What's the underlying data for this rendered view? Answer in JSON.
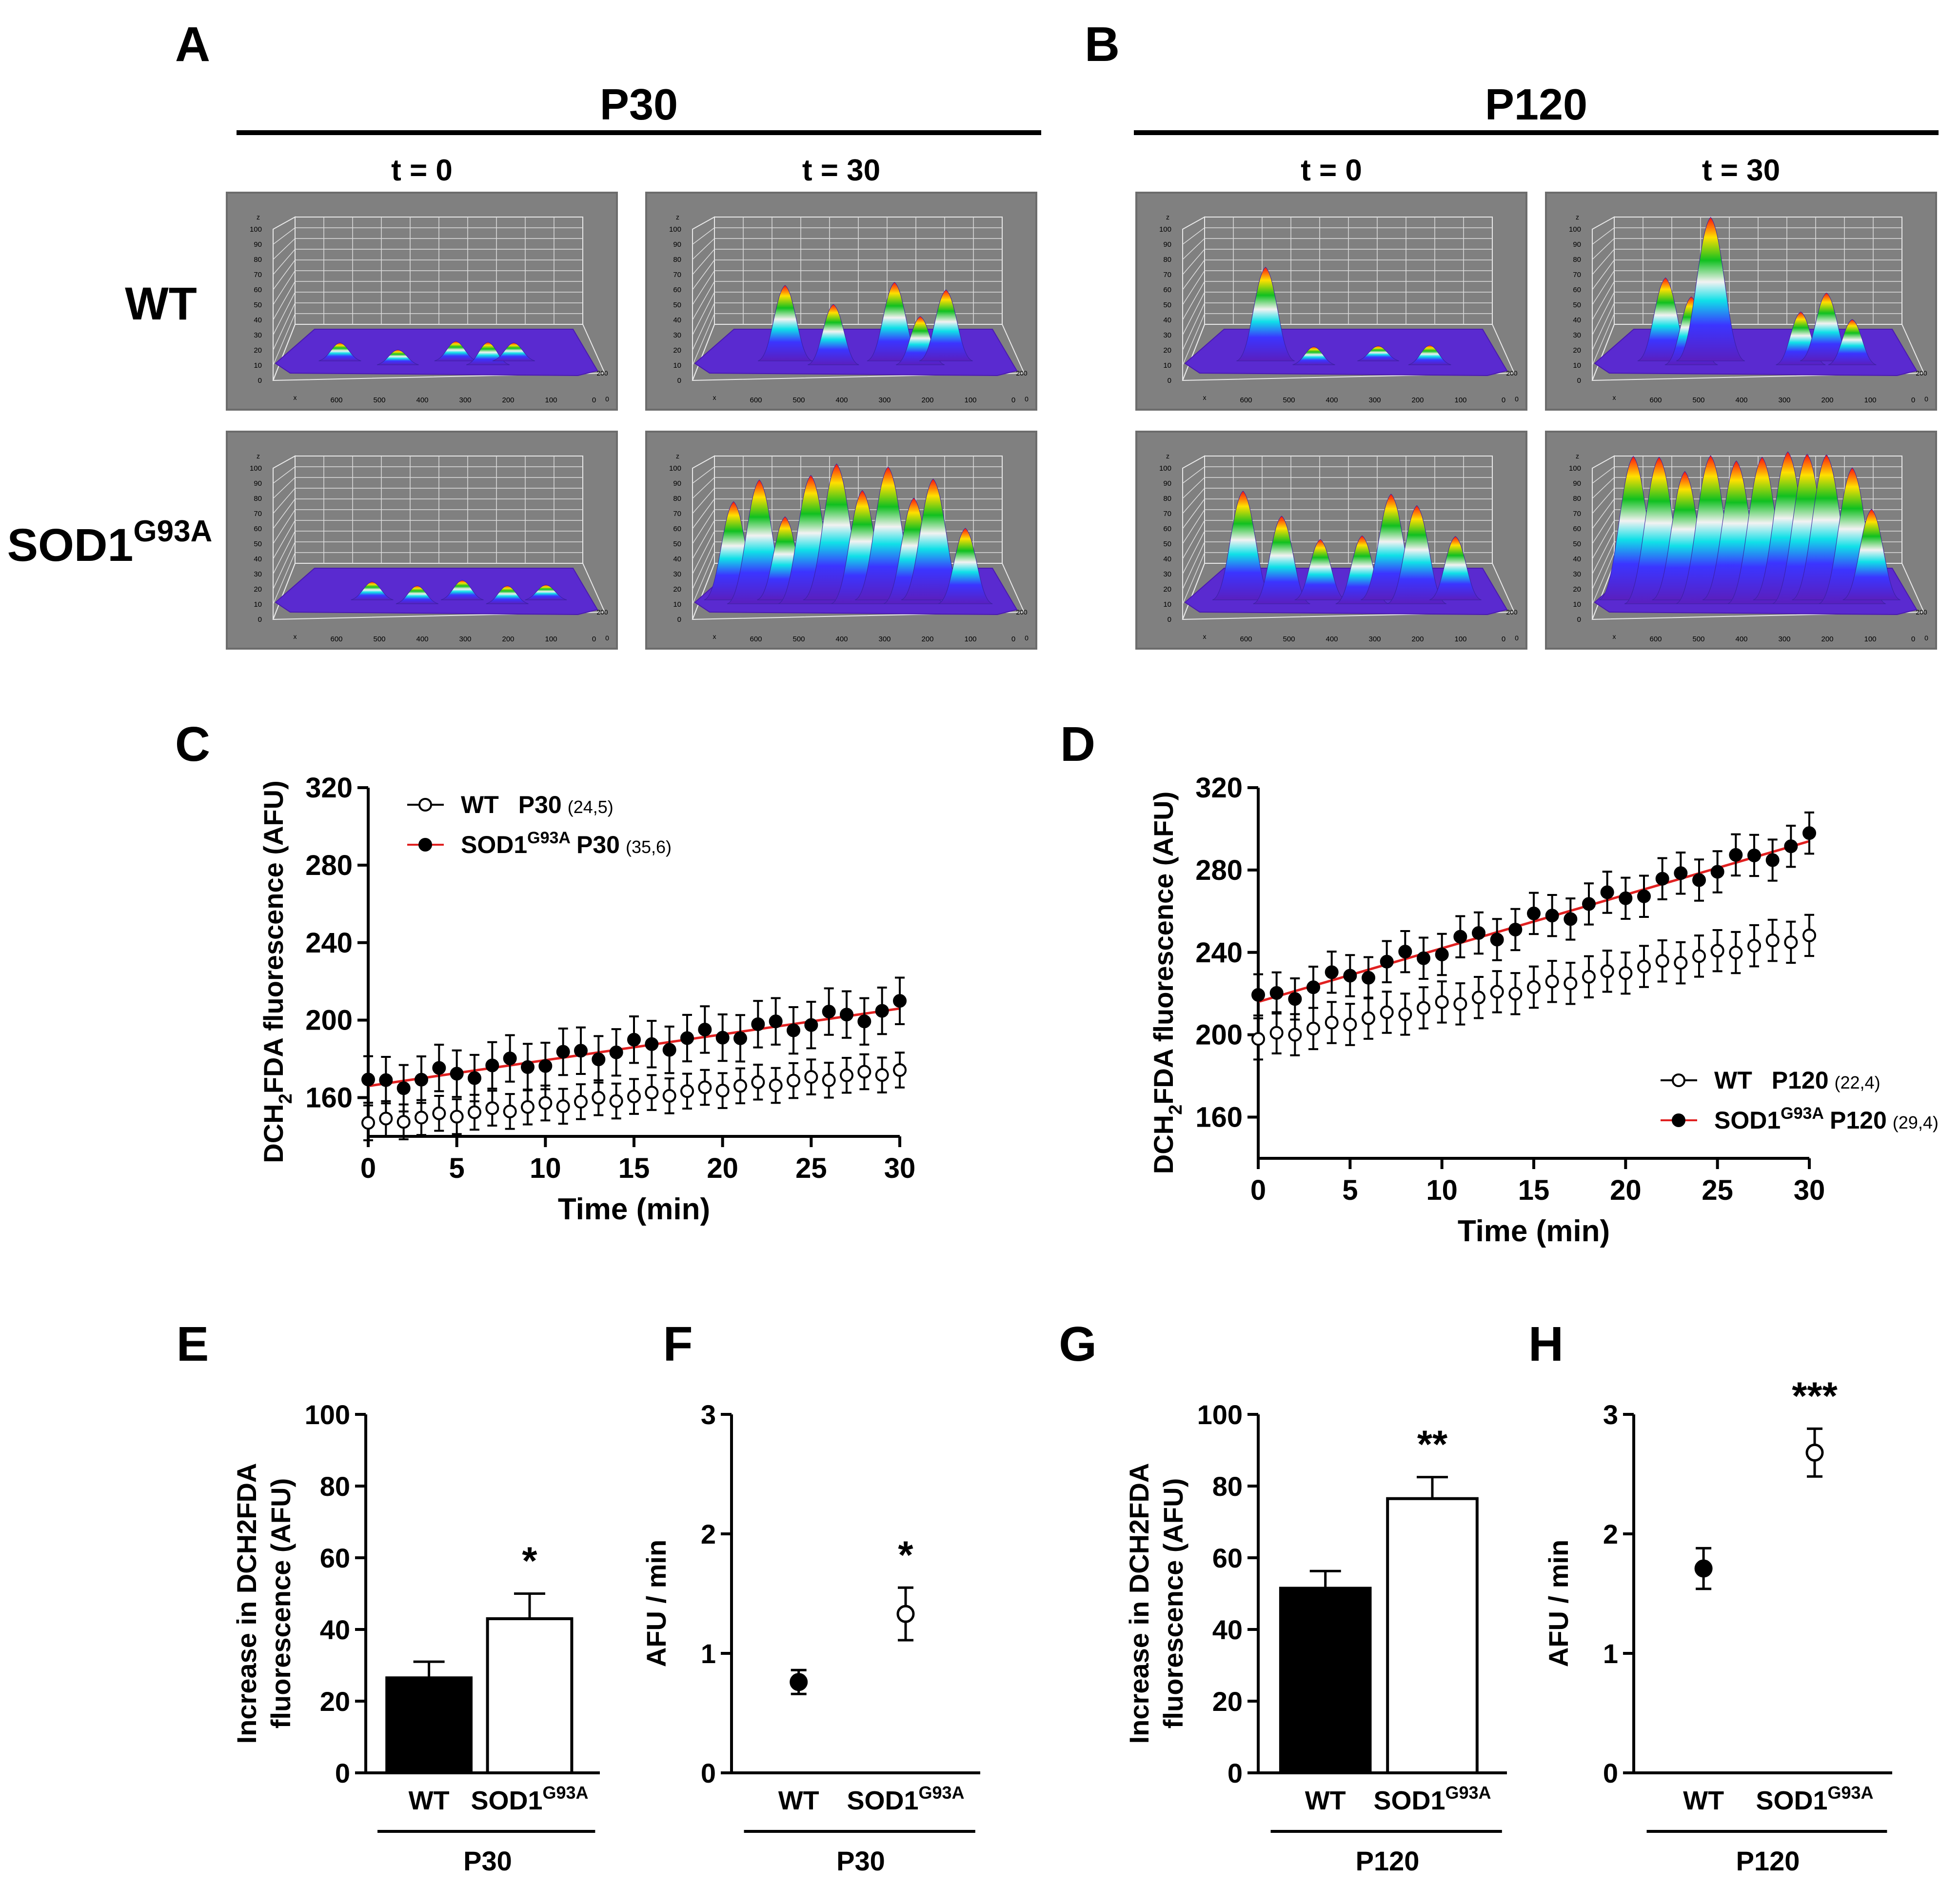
{
  "panel_letters": {
    "A": "A",
    "B": "B",
    "C": "C",
    "D": "D",
    "E": "E",
    "F": "F",
    "G": "G",
    "H": "H"
  },
  "surface_panels": {
    "groups": [
      {
        "id": "A",
        "title": "P30",
        "col_titles": [
          "t = 0",
          "t = 30"
        ]
      },
      {
        "id": "B",
        "title": "P120",
        "col_titles": [
          "t = 0",
          "t = 30"
        ]
      }
    ],
    "row_labels": [
      {
        "main": "WT",
        "sup": ""
      },
      {
        "main": "SOD1",
        "sup": "G93A"
      }
    ],
    "z_ticks": [
      "100",
      "90",
      "80",
      "70",
      "60",
      "50",
      "40",
      "30",
      "20",
      "10",
      "0"
    ],
    "z_axis_label": "z",
    "x_axis_label": "x",
    "x_ticks": [
      "600",
      "500",
      "400",
      "300",
      "200",
      "100",
      "0"
    ],
    "depth_label": "200",
    "depth_zero": "0",
    "peaks": [
      [
        [
          [
            0.2,
            0.12
          ],
          [
            0.38,
            0.1
          ],
          [
            0.56,
            0.13
          ],
          [
            0.66,
            0.15
          ],
          [
            0.74,
            0.12
          ]
        ],
        [
          [
            0.28,
            0.5
          ],
          [
            0.43,
            0.4
          ],
          [
            0.62,
            0.52
          ],
          [
            0.7,
            0.32
          ],
          [
            0.78,
            0.47
          ]
        ]
      ],
      [
        [
          [
            0.3,
            0.12
          ],
          [
            0.44,
            0.12
          ],
          [
            0.58,
            0.13
          ],
          [
            0.72,
            0.12
          ],
          [
            0.84,
            0.1
          ]
        ],
        [
          [
            0.12,
            0.65
          ],
          [
            0.2,
            0.82
          ],
          [
            0.28,
            0.55
          ],
          [
            0.36,
            0.85
          ],
          [
            0.44,
            0.9
          ],
          [
            0.52,
            0.75
          ],
          [
            0.6,
            0.88
          ],
          [
            0.68,
            0.7
          ],
          [
            0.74,
            0.8
          ],
          [
            0.84,
            0.5
          ]
        ]
      ],
      [
        [
          [
            0.25,
            0.62
          ],
          [
            0.4,
            0.12
          ],
          [
            0.6,
            0.1
          ],
          [
            0.76,
            0.13
          ]
        ],
        [
          [
            0.22,
            0.55
          ],
          [
            0.3,
            0.45
          ],
          [
            0.36,
            0.95
          ],
          [
            0.64,
            0.35
          ],
          [
            0.72,
            0.45
          ],
          [
            0.8,
            0.3
          ]
        ]
      ],
      [
        [
          [
            0.18,
            0.72
          ],
          [
            0.3,
            0.58
          ],
          [
            0.42,
            0.4
          ],
          [
            0.55,
            0.45
          ],
          [
            0.64,
            0.7
          ],
          [
            0.72,
            0.65
          ],
          [
            0.84,
            0.42
          ]
        ],
        [
          [
            0.12,
            0.95
          ],
          [
            0.2,
            0.97
          ],
          [
            0.28,
            0.85
          ],
          [
            0.36,
            0.98
          ],
          [
            0.44,
            0.92
          ],
          [
            0.52,
            0.97
          ],
          [
            0.6,
            0.98
          ],
          [
            0.66,
            0.99
          ],
          [
            0.72,
            0.96
          ],
          [
            0.8,
            0.9
          ],
          [
            0.86,
            0.6
          ]
        ]
      ]
    ]
  },
  "line_charts": [
    {
      "letter": "C",
      "ylabel_parts": [
        "DCH",
        "2",
        "FDA fluorescence (AFU)"
      ],
      "xlabel": "Time (min)",
      "x_ticks": [
        "0",
        "5",
        "10",
        "15",
        "20",
        "25",
        "30"
      ],
      "y_ticks": [
        "160",
        "200",
        "240",
        "280",
        "320"
      ],
      "legend": [
        {
          "name": "WT",
          "sup": "",
          "group": "P30",
          "n": "(24,5)",
          "filled": false
        },
        {
          "name": "SOD1",
          "sup": "G93A",
          "group": "P30",
          "n": "(35,6)",
          "filled": true
        }
      ]
    },
    {
      "letter": "D",
      "ylabel_parts": [
        "DCH",
        "2",
        "FDA fluorescence (AFU)"
      ],
      "xlabel": "Time (min)",
      "x_ticks": [
        "0",
        "5",
        "10",
        "15",
        "20",
        "25",
        "30"
      ],
      "y_ticks": [
        "160",
        "200",
        "240",
        "280",
        "320"
      ],
      "legend": [
        {
          "name": "WT",
          "sup": "",
          "group": "P120",
          "n": "(22,4)",
          "filled": false
        },
        {
          "name": "SOD1",
          "sup": "G93A",
          "group": "P120",
          "n": "(29,4)",
          "filled": true
        }
      ]
    }
  ],
  "summary_charts": [
    {
      "letter": "E",
      "ylabel_lines": [
        "Increase in DCH2FDA",
        "fluorescence (AFU)"
      ],
      "y_ticks": [
        "0",
        "20",
        "40",
        "60",
        "80",
        "100"
      ],
      "xcats": [
        "WT",
        "SOD1"
      ],
      "xcat_sup": "G93A",
      "group": "P30",
      "sig": "*"
    },
    {
      "letter": "F",
      "ylabel_lines": [
        "AFU / min"
      ],
      "y_ticks": [
        "0",
        "1",
        "2",
        "3"
      ],
      "xcats": [
        "WT",
        "SOD1"
      ],
      "xcat_sup": "G93A",
      "group": "P30",
      "sig": "*"
    },
    {
      "letter": "G",
      "ylabel_lines": [
        "Increase in DCH2FDA",
        "fluorescence (AFU)"
      ],
      "y_ticks": [
        "0",
        "20",
        "40",
        "60",
        "80",
        "100"
      ],
      "xcats": [
        "WT",
        "SOD1"
      ],
      "xcat_sup": "G93A",
      "group": "P120",
      "sig": "**"
    },
    {
      "letter": "H",
      "ylabel_lines": [
        "AFU / min"
      ],
      "y_ticks": [
        "0",
        "1",
        "2",
        "3"
      ],
      "xcats": [
        "WT",
        "SOD1"
      ],
      "xcat_sup": "G93A",
      "group": "P120",
      "sig": "***"
    }
  ],
  "chart_data": [
    {
      "panel": "C",
      "type": "scatter",
      "title": "",
      "xlabel": "Time (min)",
      "ylabel": "DCH2FDA fluorescence (AFU)",
      "xlim": [
        0,
        30
      ],
      "ylim": [
        140,
        320
      ],
      "series": [
        {
          "name": "WT P30 (24,5)",
          "marker": "open",
          "fit_line": false,
          "fit": [
            147,
            174
          ],
          "err": 9
        },
        {
          "name": "SOD1G93A P30 (35,6)",
          "marker": "filled",
          "fit_line": true,
          "fit_color": "#e02020",
          "fit": [
            166,
            206
          ],
          "err": 12
        }
      ]
    },
    {
      "panel": "D",
      "type": "scatter",
      "title": "",
      "xlabel": "Time (min)",
      "ylabel": "DCH2FDA fluorescence (AFU)",
      "xlim": [
        0,
        30
      ],
      "ylim": [
        140,
        320
      ],
      "series": [
        {
          "name": "WT P120 (22,4)",
          "marker": "open",
          "fit_line": false,
          "fit": [
            198,
            248
          ],
          "err": 10
        },
        {
          "name": "SOD1G93A P120 (29,4)",
          "marker": "filled",
          "fit_line": true,
          "fit_color": "#e02020",
          "fit": [
            216,
            294
          ],
          "err": 10
        }
      ]
    },
    {
      "panel": "E",
      "type": "bar",
      "categories": [
        "WT",
        "SOD1G93A"
      ],
      "values": [
        26.5,
        43
      ],
      "errors": [
        4.5,
        7
      ],
      "fills": [
        "#000000",
        "#ffffff"
      ],
      "ylabel": "Increase in DCH2FDA fluorescence (AFU)",
      "ylim": [
        0,
        100
      ],
      "group": "P30",
      "significance": "*"
    },
    {
      "panel": "F",
      "type": "scatter",
      "categories": [
        "WT",
        "SOD1G93A"
      ],
      "values": [
        0.76,
        1.33
      ],
      "errors": [
        0.1,
        0.22
      ],
      "markers": [
        "filled",
        "open"
      ],
      "ylabel": "AFU / min",
      "ylim": [
        0,
        3
      ],
      "group": "P30",
      "significance": "*"
    },
    {
      "panel": "G",
      "type": "bar",
      "categories": [
        "WT",
        "SOD1G93A"
      ],
      "values": [
        51.5,
        76.5
      ],
      "errors": [
        4.8,
        6
      ],
      "fills": [
        "#000000",
        "#ffffff"
      ],
      "ylabel": "Increase in DCH2FDA fluorescence (AFU)",
      "ylim": [
        0,
        100
      ],
      "group": "P120",
      "significance": "**"
    },
    {
      "panel": "H",
      "type": "scatter",
      "categories": [
        "WT",
        "SOD1G93A"
      ],
      "values": [
        1.71,
        2.68
      ],
      "errors": [
        0.17,
        0.2
      ],
      "markers": [
        "filled",
        "open"
      ],
      "ylabel": "AFU / min",
      "ylim": [
        0,
        3
      ],
      "group": "P120",
      "significance": "***"
    }
  ]
}
